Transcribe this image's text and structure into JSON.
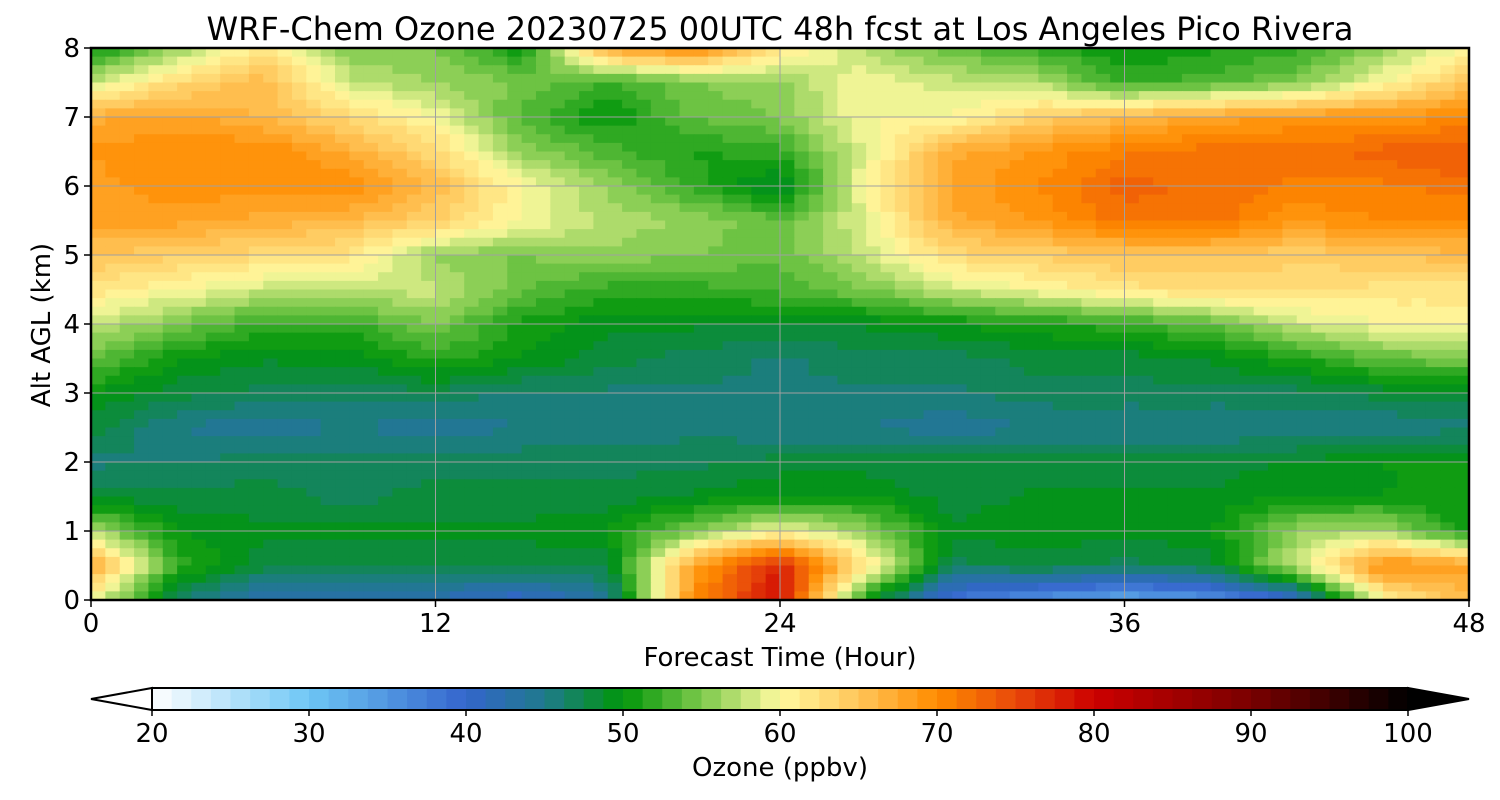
{
  "chart_data": {
    "type": "heatmap",
    "title": "WRF-Chem Ozone  20230725 00UTC 48h fcst at Los Angeles Pico Rivera",
    "xlabel": "Forecast Time (Hour)",
    "ylabel": "Alt AGL (km)",
    "xlim": [
      0,
      48
    ],
    "ylim": [
      0,
      8
    ],
    "x_ticks": [
      0,
      12,
      24,
      36,
      48
    ],
    "y_ticks": [
      0,
      1,
      2,
      3,
      4,
      5,
      6,
      7,
      8
    ],
    "grid": true,
    "x": [
      0,
      3,
      6,
      9,
      12,
      15,
      18,
      21,
      24,
      27,
      30,
      33,
      36,
      39,
      42,
      45,
      48
    ],
    "y": [
      0,
      0.5,
      1,
      1.5,
      2,
      2.5,
      3,
      3.5,
      4,
      4.5,
      5,
      5.5,
      6,
      6.5,
      7,
      7.5,
      8
    ],
    "z": [
      [
        60,
        46,
        42,
        42,
        42,
        40,
        44,
        70,
        79,
        50,
        38,
        35,
        33,
        35,
        40,
        60,
        66
      ],
      [
        68,
        52,
        48,
        48,
        48,
        48,
        48,
        68,
        78,
        62,
        47,
        48,
        47,
        48,
        58,
        70,
        68
      ],
      [
        57,
        50,
        49,
        49,
        49,
        49,
        50,
        55,
        60,
        56,
        49,
        50,
        49,
        50,
        56,
        57,
        50
      ],
      [
        48,
        48,
        48,
        47,
        48,
        48,
        48,
        49,
        50,
        50,
        48,
        49,
        49,
        49,
        50,
        50,
        50
      ],
      [
        46,
        46,
        47,
        47,
        47,
        47,
        47,
        47,
        48,
        48,
        48,
        48,
        48,
        48,
        49,
        50,
        50
      ],
      [
        48,
        45,
        44,
        45,
        44,
        45,
        45,
        46,
        45,
        45,
        44,
        45,
        45,
        45,
        45,
        45,
        46
      ],
      [
        50,
        48,
        47,
        47,
        47,
        46,
        46,
        46,
        46,
        46,
        46,
        47,
        47,
        47,
        47,
        48,
        48
      ],
      [
        54,
        50,
        49,
        49,
        52,
        50,
        48,
        47,
        46,
        47,
        47,
        48,
        48,
        49,
        51,
        54,
        55
      ],
      [
        58,
        55,
        52,
        52,
        55,
        51,
        49,
        49,
        49,
        49,
        50,
        51,
        52,
        54,
        58,
        60,
        60
      ],
      [
        62,
        60,
        58,
        58,
        58,
        54,
        52,
        52,
        53,
        55,
        58,
        60,
        62,
        63,
        63,
        62,
        62
      ],
      [
        65,
        64,
        63,
        62,
        56,
        55,
        56,
        55,
        54,
        58,
        63,
        64,
        65,
        65,
        64,
        65,
        66
      ],
      [
        68,
        68,
        67,
        66,
        64,
        60,
        57,
        56,
        54,
        59,
        67,
        69,
        72,
        72,
        69,
        70,
        70
      ],
      [
        68,
        70,
        69,
        70,
        66,
        60,
        56,
        52,
        48,
        60,
        68,
        70,
        73,
        72,
        71,
        71,
        72
      ],
      [
        69,
        70,
        70,
        67,
        63,
        56,
        53,
        51,
        52,
        59,
        67,
        69,
        71,
        72,
        72,
        73,
        74
      ],
      [
        67,
        68,
        66,
        63,
        60,
        53,
        50,
        54,
        55,
        60,
        60,
        64,
        66,
        68,
        69,
        69,
        70
      ],
      [
        58,
        63,
        66,
        58,
        56,
        55,
        52,
        55,
        56,
        60,
        58,
        57,
        52,
        53,
        55,
        60,
        65
      ],
      [
        50,
        56,
        62,
        55,
        55,
        50,
        68,
        70,
        62,
        57,
        54,
        52,
        50,
        51,
        52,
        56,
        60
      ]
    ],
    "colorbar": {
      "label": "Ozone  (ppbv)",
      "min": 20,
      "max": 100,
      "ticks": [
        20,
        30,
        40,
        50,
        60,
        70,
        80,
        90,
        100
      ],
      "extend": "both",
      "placement": "bottom",
      "stops": [
        {
          "v": 20,
          "c": "#ffffff"
        },
        {
          "v": 30,
          "c": "#6ec6f5"
        },
        {
          "v": 40,
          "c": "#3465cc"
        },
        {
          "v": 45,
          "c": "#1f7a8c"
        },
        {
          "v": 50,
          "c": "#00960a"
        },
        {
          "v": 55,
          "c": "#7cc94b"
        },
        {
          "v": 60,
          "c": "#fffaa0"
        },
        {
          "v": 65,
          "c": "#ffc559"
        },
        {
          "v": 70,
          "c": "#ff8c00"
        },
        {
          "v": 75,
          "c": "#e8480a"
        },
        {
          "v": 80,
          "c": "#cc0000"
        },
        {
          "v": 90,
          "c": "#7a0000"
        },
        {
          "v": 100,
          "c": "#000000"
        }
      ]
    }
  }
}
